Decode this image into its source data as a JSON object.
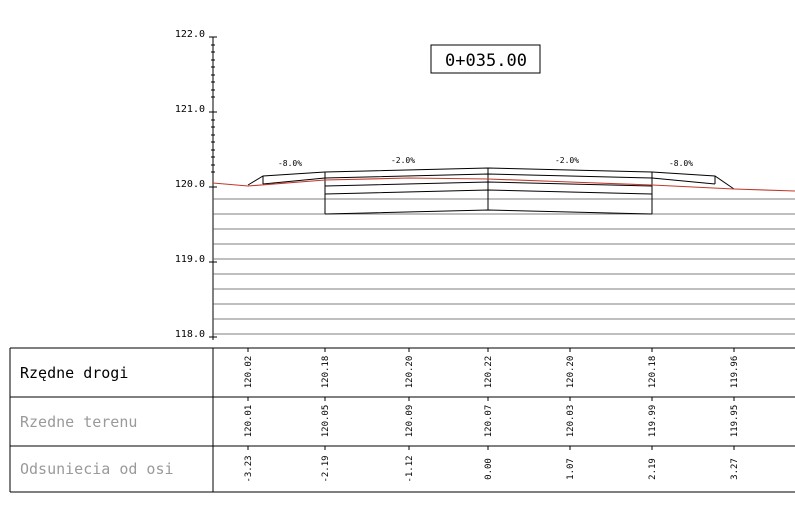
{
  "station_label": "0+035.00",
  "vertical_axis": {
    "ticks": [
      "122.0",
      "121.0",
      "120.0",
      "119.0",
      "118.0"
    ]
  },
  "slopes": [
    "-8.0%",
    "-2.0%",
    "-2.0%",
    "-8.0%"
  ],
  "table": {
    "rows": [
      {
        "title": "Rzędne drogi",
        "values": [
          "120.02",
          "120.18",
          "120.20",
          "120.22",
          "120.20",
          "120.18",
          "119.96"
        ]
      },
      {
        "title": "Rzedne terenu",
        "values": [
          "120.01",
          "120.05",
          "120.09",
          "120.07",
          "120.03",
          "119.99",
          "119.95"
        ]
      },
      {
        "title": "Odsuniecia od osi",
        "values": [
          "-3.23",
          "-2.19",
          "-1.12",
          "0.00",
          "1.07",
          "2.19",
          "3.27"
        ]
      }
    ]
  },
  "colors": {
    "terrain_line": "#c0392b",
    "road_lines": "#000000",
    "grid_lines": "#555555",
    "table_muted_text": "#9a9a9a"
  }
}
